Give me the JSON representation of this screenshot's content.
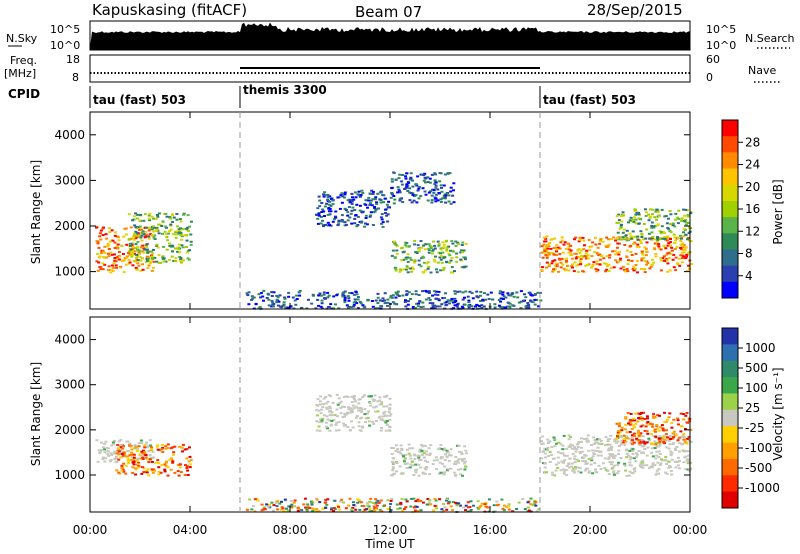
{
  "header": {
    "station": "Kapuskasing (fitACF)",
    "beam": "Beam 07",
    "date": "28/Sep/2015"
  },
  "nsky_panel": {
    "left_label": "N.Sky",
    "left_ticks": [
      "10^5",
      "10^0"
    ],
    "right_label": "N.Search",
    "right_ticks": [
      "10^5",
      "10^0"
    ]
  },
  "freq_panel": {
    "left_label_line1": "Freq.",
    "left_label_line2": "[MHz]",
    "left_ticks": [
      "18",
      "8"
    ],
    "right_label": "Nave",
    "right_ticks": [
      "60",
      "0"
    ]
  },
  "cpid_panel": {
    "label": "CPID",
    "segments": [
      {
        "name": "tau (fast) 503",
        "start_hour": 0,
        "end_hour": 6
      },
      {
        "name": "themis 3300",
        "start_hour": 6,
        "end_hour": 18
      },
      {
        "name": "tau (fast) 503",
        "start_hour": 18,
        "end_hour": 24
      }
    ]
  },
  "power_colorbar": {
    "label": "Power [dB]",
    "ticks": [
      "28",
      "24",
      "20",
      "16",
      "12",
      "8",
      "4"
    ],
    "colors": [
      "#ff0000",
      "#ff4a00",
      "#ff8a00",
      "#ffc400",
      "#d8d800",
      "#a0d000",
      "#5ab44a",
      "#2e8b57",
      "#2f6d8c",
      "#2a3fb0",
      "#0000ff"
    ]
  },
  "velocity_colorbar": {
    "label": "Velocity [m s⁻¹]",
    "ticks": [
      "1000",
      "500",
      "100",
      "25",
      "-25",
      "-100",
      "-500",
      "-1000"
    ],
    "colors": [
      "#2233aa",
      "#2e6fb0",
      "#2f8a6a",
      "#3aa84a",
      "#9cd24a",
      "#c8c8c0",
      "#ffd000",
      "#ffa000",
      "#ff6a00",
      "#ff2a00",
      "#e00000"
    ]
  },
  "chart_data": [
    {
      "type": "heatmap",
      "title": "Kapuskasing (fitACF)  Beam 07  28/Sep/2015",
      "quantity": "Power",
      "xlabel": "Time UT",
      "ylabel": "Slant Range [km]",
      "x_ticks": [
        "00:00",
        "04:00",
        "08:00",
        "12:00",
        "16:00",
        "20:00",
        "00:00"
      ],
      "xlim_hours": [
        0,
        24
      ],
      "y_ticks": [
        1000,
        2000,
        3000,
        4000
      ],
      "ylim_km": [
        180,
        4500
      ],
      "colorbar_label": "Power [dB]",
      "colorbar_ticks": [
        4,
        8,
        12,
        16,
        20,
        24,
        28
      ],
      "mode_boundaries_hours": [
        6,
        18
      ],
      "regions": [
        {
          "t0": 0.2,
          "t1": 2.5,
          "r0": 1000,
          "r1": 2000,
          "level": "high"
        },
        {
          "t0": 1.5,
          "t1": 4.0,
          "r0": 1200,
          "r1": 2300,
          "level": "mid"
        },
        {
          "t0": 6.2,
          "t1": 18,
          "r0": 200,
          "r1": 600,
          "level": "low"
        },
        {
          "t0": 9,
          "t1": 12,
          "r0": 2000,
          "r1": 2800,
          "level": "low"
        },
        {
          "t0": 12,
          "t1": 15,
          "r0": 1000,
          "r1": 1700,
          "level": "mid"
        },
        {
          "t0": 12,
          "t1": 14.5,
          "r0": 2500,
          "r1": 3200,
          "level": "low"
        },
        {
          "t0": 18,
          "t1": 24,
          "r0": 1000,
          "r1": 1800,
          "level": "high"
        },
        {
          "t0": 21,
          "t1": 24,
          "r0": 1700,
          "r1": 2400,
          "level": "mid"
        }
      ]
    },
    {
      "type": "heatmap",
      "quantity": "Velocity",
      "xlabel": "Time UT",
      "ylabel": "Slant Range [km]",
      "x_ticks": [
        "00:00",
        "04:00",
        "08:00",
        "12:00",
        "16:00",
        "20:00",
        "00:00"
      ],
      "xlim_hours": [
        0,
        24
      ],
      "y_ticks": [
        1000,
        2000,
        3000,
        4000
      ],
      "ylim_km": [
        180,
        4500
      ],
      "colorbar_label": "Velocity [m s⁻¹]",
      "colorbar_ticks": [
        1000,
        500,
        100,
        25,
        -25,
        -100,
        -500,
        -1000
      ],
      "mode_boundaries_hours": [
        6,
        18
      ],
      "regions": [
        {
          "t0": 0.2,
          "t1": 2.5,
          "r0": 1300,
          "r1": 1800,
          "level": "ground"
        },
        {
          "t0": 1.0,
          "t1": 4.0,
          "r0": 1000,
          "r1": 1700,
          "level": "negative"
        },
        {
          "t0": 6.2,
          "t1": 18,
          "r0": 200,
          "r1": 500,
          "level": "mixed"
        },
        {
          "t0": 9,
          "t1": 12,
          "r0": 2000,
          "r1": 2800,
          "level": "ground"
        },
        {
          "t0": 12,
          "t1": 15,
          "r0": 1000,
          "r1": 1700,
          "level": "ground"
        },
        {
          "t0": 18,
          "t1": 24,
          "r0": 1000,
          "r1": 1900,
          "level": "ground"
        },
        {
          "t0": 21,
          "t1": 24,
          "r0": 1700,
          "r1": 2400,
          "level": "negative"
        }
      ]
    }
  ]
}
